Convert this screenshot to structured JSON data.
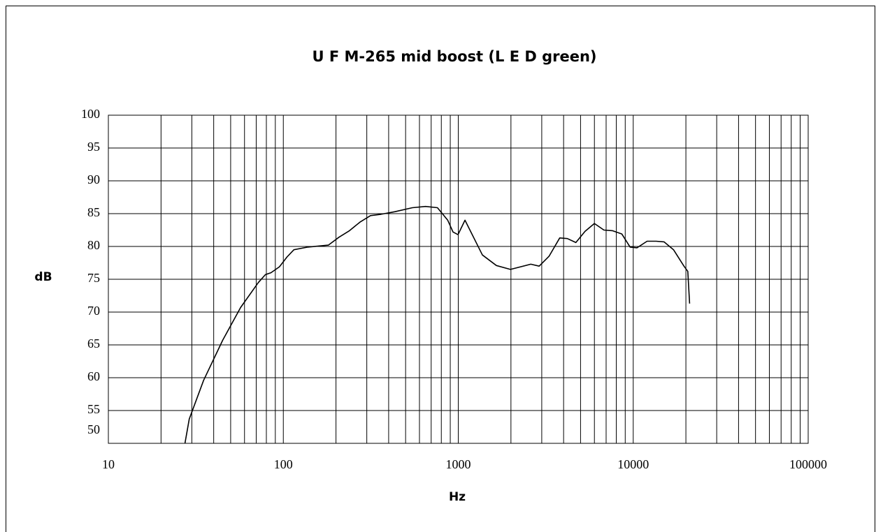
{
  "chart_data": {
    "type": "line",
    "title": "U F M-265 mid boost (L E D green)",
    "xlabel": "Hz",
    "ylabel": "dB",
    "x": [
      27,
      29,
      35,
      45,
      57,
      72,
      79,
      85,
      95,
      105,
      115,
      138,
      181,
      208,
      239,
      274,
      315,
      362,
      435,
      547,
      650,
      760,
      870,
      933,
      996,
      1092,
      1373,
      1651,
      1986,
      2600,
      2900,
      3300,
      3800,
      4200,
      4700,
      5300,
      6000,
      6800,
      7600,
      8600,
      9600,
      10500,
      12000,
      13500,
      15000,
      17000,
      19500,
      20500,
      21000
    ],
    "values": [
      49,
      53.7,
      59.6,
      65.7,
      70.7,
      74.5,
      75.7,
      76,
      76.9,
      78.4,
      79.5,
      79.9,
      80.2,
      81.4,
      82.4,
      83.7,
      84.7,
      84.9,
      85.3,
      85.9,
      86.1,
      85.9,
      84,
      82.2,
      81.8,
      84,
      78.7,
      77.1,
      76.5,
      77.3,
      77,
      78.5,
      81.3,
      81.2,
      80.6,
      82.3,
      83.5,
      82.5,
      82.4,
      81.9,
      79.9,
      79.8,
      80.8,
      80.8,
      80.7,
      79.5,
      77,
      76.2,
      71.3
    ],
    "color": "#000000",
    "xscale": "log",
    "xlim": [
      10,
      100000
    ],
    "xticks": [
      10,
      100,
      1000,
      10000,
      100000
    ],
    "ylim": [
      50,
      100
    ],
    "yticks": [
      50,
      55,
      60,
      65,
      70,
      75,
      80,
      85,
      90,
      95,
      100
    ],
    "grid": true,
    "x_minor_grid": true
  }
}
